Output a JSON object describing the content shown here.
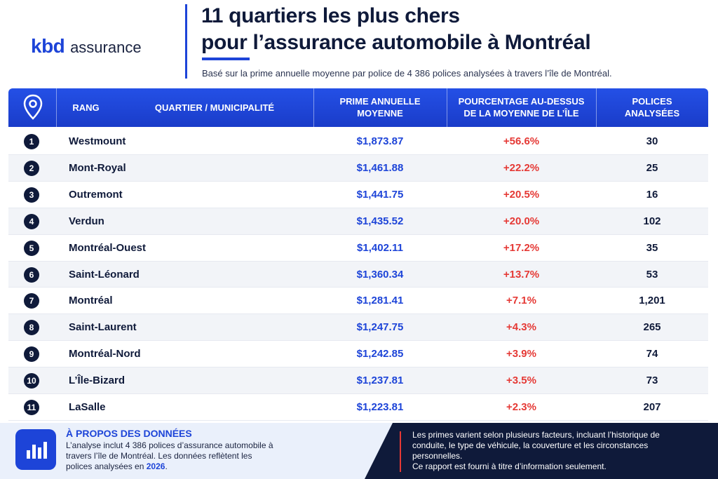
{
  "logo": {
    "brand": "kbd",
    "suffix": "assurance"
  },
  "header": {
    "title_line1": "11 quartiers les plus chers",
    "title_line2_underlined": "pour",
    "title_line2_rest": " l’assurance automobile à Montréal",
    "subtitle": "Basé sur la prime annuelle moyenne par police de 4 386 polices analysées à travers l’île de Montréal."
  },
  "table": {
    "columns": [
      "RANG",
      "QUARTIER / MUNICIPALITÉ",
      "PRIME ANNUELLE MOYENNE",
      "POURCENTAGE AU-DESSUS DE LA MOYENNE DE L’ÎLE",
      "POLICES ANALYSÉES"
    ],
    "rows": [
      [
        1,
        "Westmount",
        "$1,873.87",
        "+56.6%",
        30
      ],
      [
        2,
        "Mont-Royal",
        "$1,461.88",
        "+22.2%",
        25
      ],
      [
        3,
        "Outremont",
        "$1,441.75",
        "+20.5%",
        16
      ],
      [
        4,
        "Verdun",
        "$1,435.52",
        "+20.0%",
        102
      ],
      [
        5,
        "Montréal-Ouest",
        "$1,402.11",
        "+17.2%",
        35
      ],
      [
        6,
        "Saint-Léonard",
        "$1,360.34",
        "+13.7%",
        53
      ],
      [
        7,
        "Montréal",
        "$1,281.41",
        "+7.1%",
        "1,201"
      ],
      [
        8,
        "Saint-Laurent",
        "$1,247.75",
        "+4.3%",
        265
      ],
      [
        9,
        "Montréal-Nord",
        "$1,242.85",
        "+3.9%",
        74
      ],
      [
        10,
        "L’Île-Bizard",
        "$1,237.81",
        "+3.5%",
        73
      ],
      [
        11,
        "LaSalle",
        "$1,223.81",
        "+2.3%",
        207
      ]
    ]
  },
  "footer": {
    "about_title": "À PROPOS DES DONNÉES",
    "about_text_before": "L’analyse inclut 4 386 polices d’assurance automobile à travers l’île de Montréal. Les données reflètent les polices analysées en ",
    "about_year": "2026",
    "about_text_after": ".",
    "note_1": "Les primes varient selon plusieurs facteurs, incluant l’historique de conduite, le type de véhicule, la couverture et les circonstances personnelles.",
    "note_2": "Ce rapport est fourni à titre d’information seulement."
  }
}
